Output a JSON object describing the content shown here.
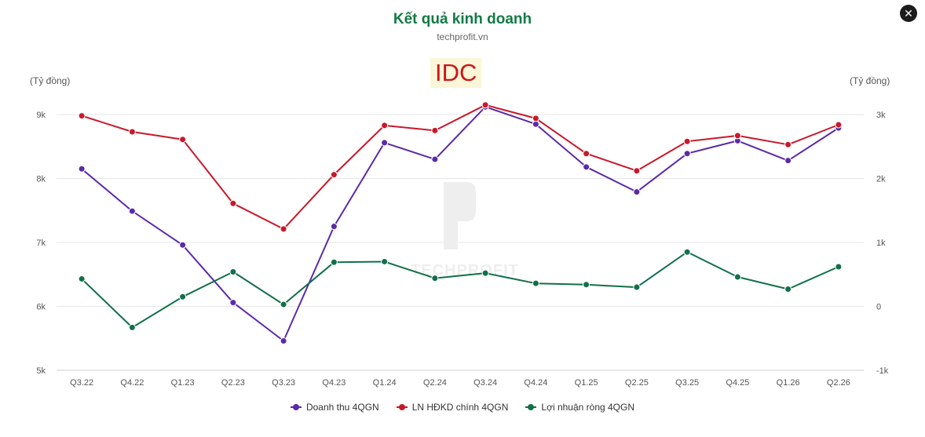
{
  "header": {
    "title": "Kết quả kinh doanh",
    "subtitle": "techprofit.vn",
    "ticker": "IDC",
    "close_icon": "close-icon"
  },
  "watermark": "TECHPROFIT",
  "chart_data": {
    "type": "line",
    "categories": [
      "Q3.22",
      "Q4.22",
      "Q1.23",
      "Q2.23",
      "Q3.23",
      "Q4.23",
      "Q1.24",
      "Q2.24",
      "Q3.24",
      "Q4.24",
      "Q1.25",
      "Q2.25",
      "Q3.25",
      "Q4.25",
      "Q1.26",
      "Q2.26"
    ],
    "y_left": {
      "label": "(Tỷ đồng)",
      "range": [
        5000,
        9000
      ],
      "ticks": [
        5000,
        6000,
        7000,
        8000,
        9000
      ],
      "tick_labels": [
        "5k",
        "6k",
        "7k",
        "8k",
        "9k"
      ]
    },
    "y_right": {
      "label": "(Tỷ đồng)",
      "range": [
        -1000,
        3000
      ],
      "ticks": [
        -1000,
        0,
        1000,
        2000,
        3000
      ],
      "tick_labels": [
        "-1k",
        "0",
        "1k",
        "2k",
        "3k"
      ]
    },
    "grid": true,
    "legend_position": "bottom",
    "series": [
      {
        "name": "Doanh thu 4QGN",
        "axis": "left",
        "color": "#5b2aa8",
        "values": [
          8150,
          7490,
          6960,
          6060,
          5460,
          7250,
          8560,
          8300,
          9120,
          8850,
          8180,
          7790,
          8390,
          8590,
          8280,
          8790
        ]
      },
      {
        "name": "LN HĐKD chính 4QGN",
        "axis": "right",
        "color": "#c8192b",
        "values": [
          2980,
          2730,
          2610,
          1610,
          1210,
          2060,
          2830,
          2750,
          3150,
          2940,
          2390,
          2120,
          2580,
          2670,
          2530,
          2840
        ]
      },
      {
        "name": "Lợi nhuận ròng 4QGN",
        "axis": "right",
        "color": "#11704a",
        "values": [
          430,
          -330,
          150,
          540,
          30,
          690,
          700,
          440,
          520,
          360,
          340,
          300,
          850,
          460,
          270,
          620
        ]
      }
    ]
  }
}
